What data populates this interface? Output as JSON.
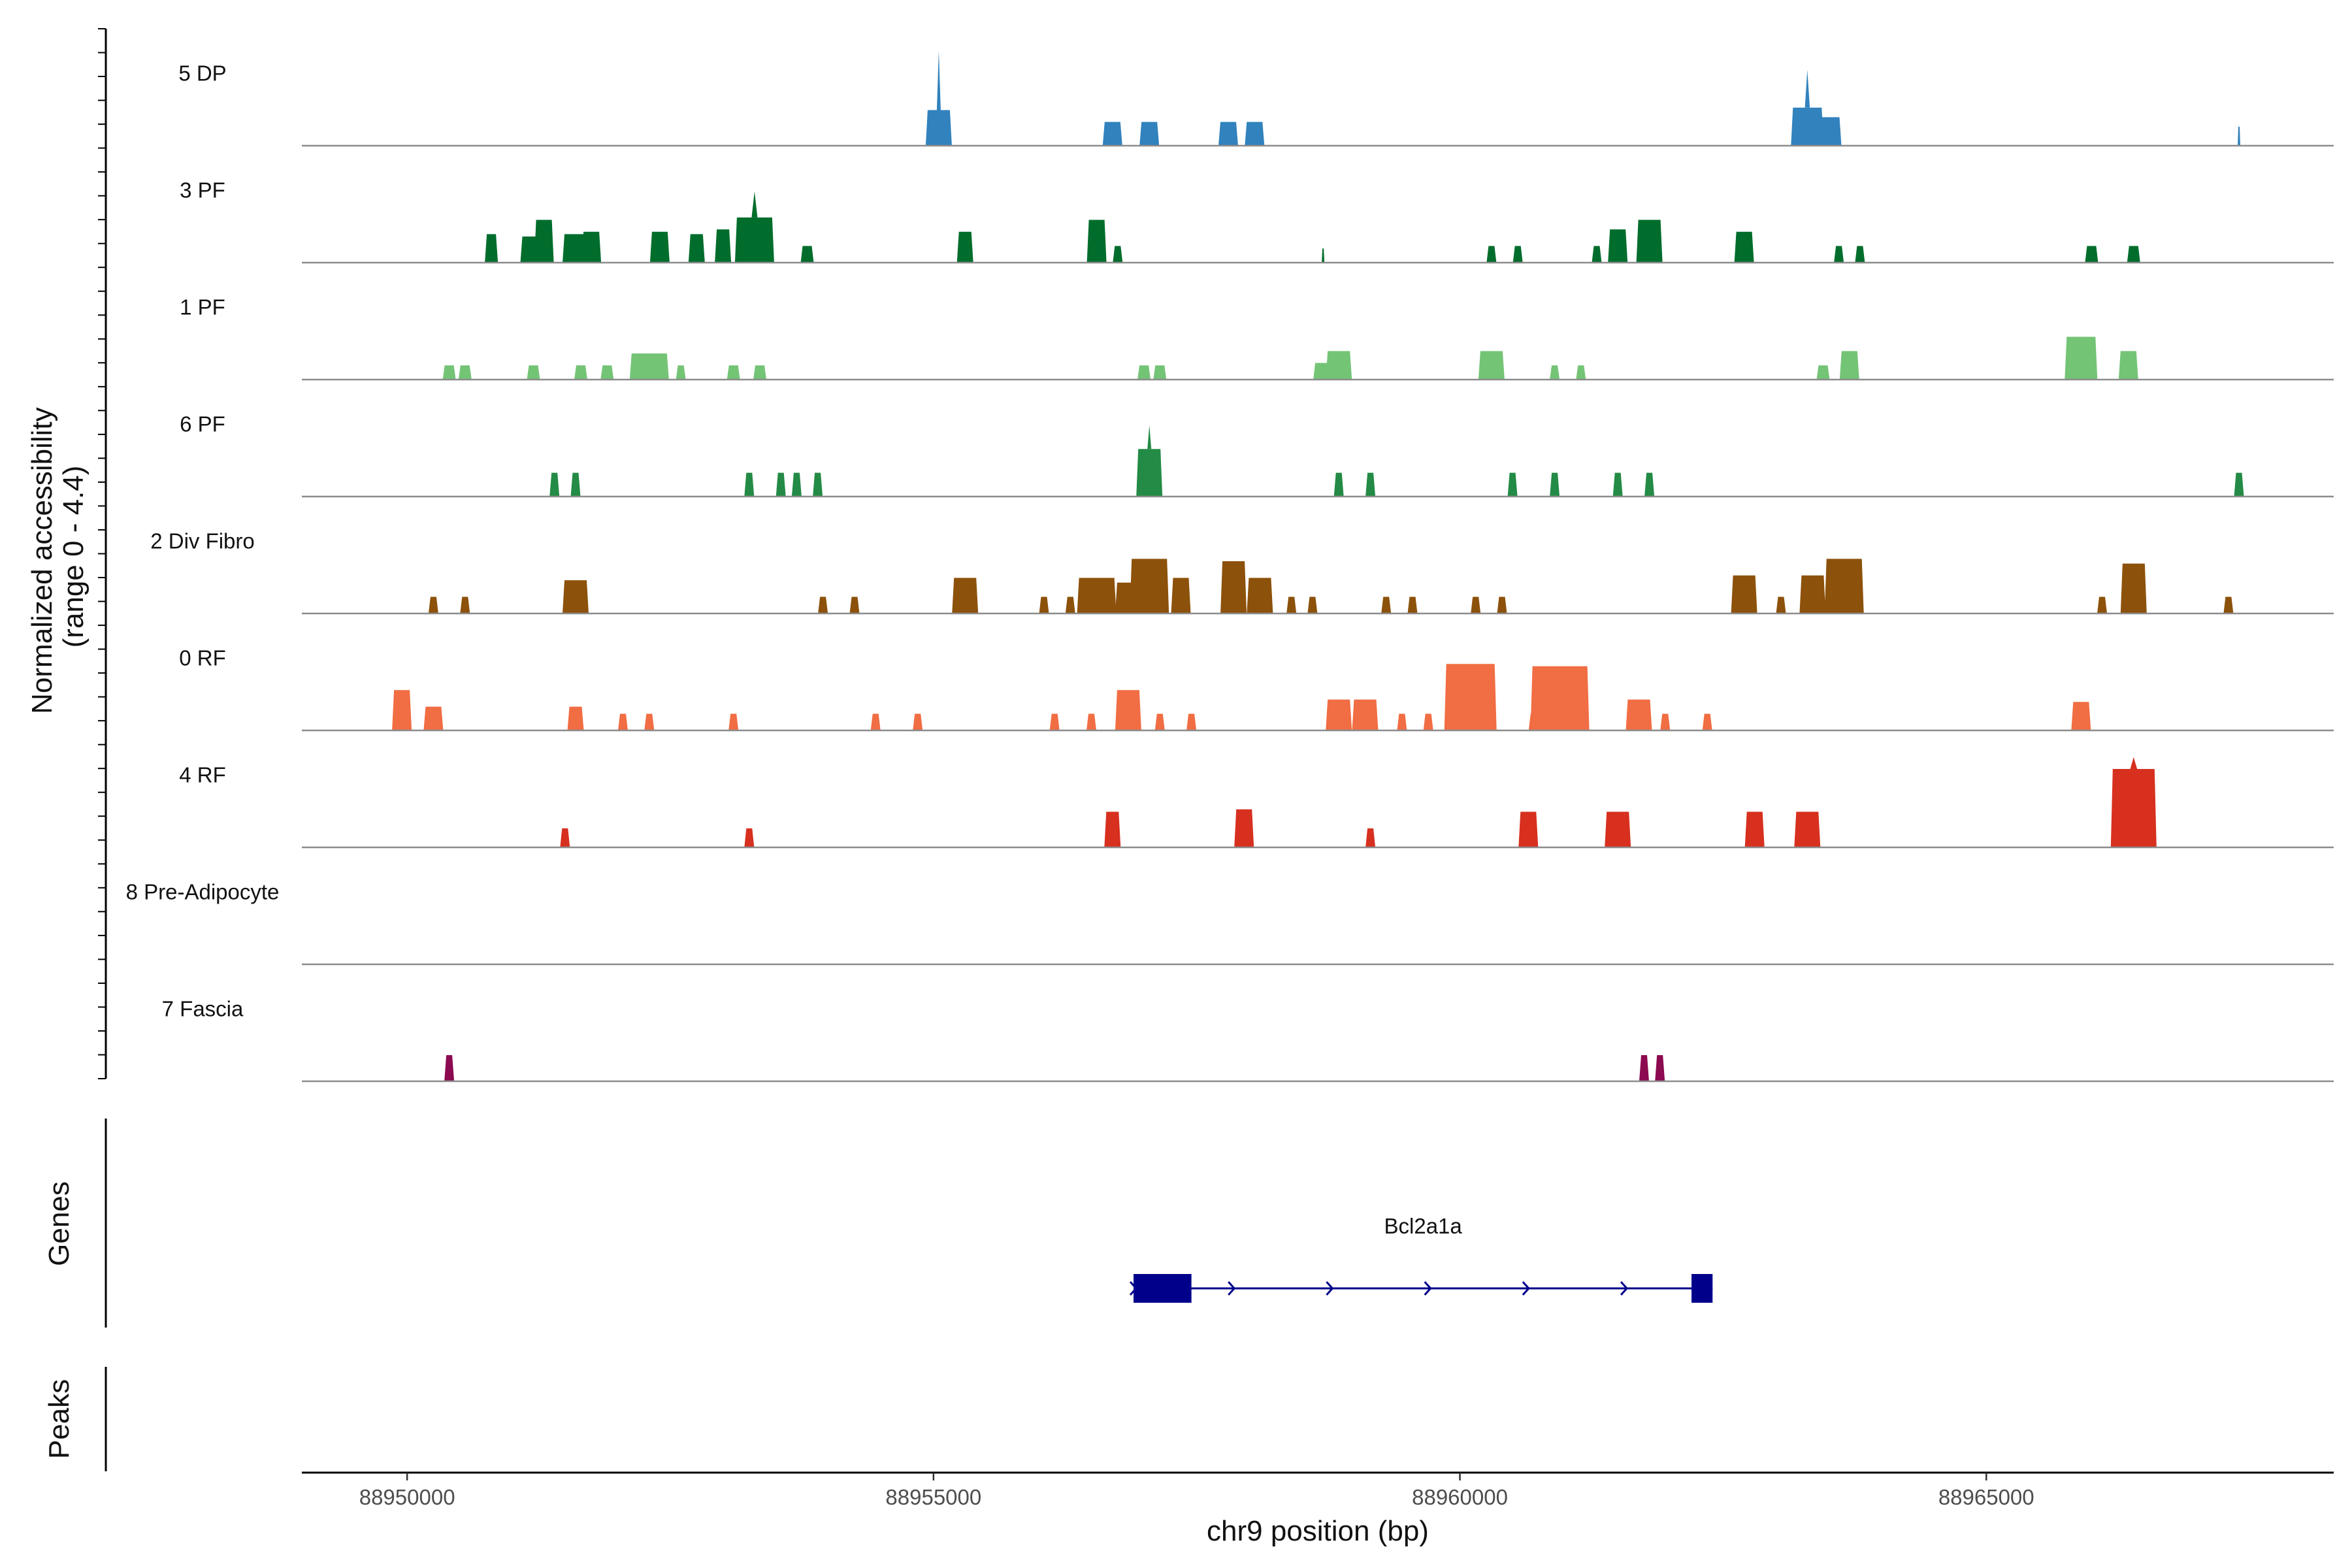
{
  "chart_data": {
    "type": "area",
    "title": "",
    "ylabel": "Normalized accessibility (range 0 - 4.4)",
    "ylabel_lines": [
      "Normalized accessibility",
      "(range 0 - 4.4)"
    ],
    "xlabel": "chr9 position (bp)",
    "xlim": [
      88949000,
      88968300
    ],
    "ylim": [
      0,
      4.4
    ],
    "x_ticks": [
      88950000,
      88955000,
      88960000,
      88965000
    ],
    "x_tick_labels": [
      "88950000",
      "88955000",
      "88960000",
      "88965000"
    ],
    "panel_labels": {
      "genes": "Genes",
      "peaks": "Peaks"
    },
    "tracks": [
      {
        "name": "5 DP",
        "color": "#3182BD",
        "peaks": [
          [
            88955050,
            40,
            1.5,
            4.0
          ],
          [
            88956700,
            30,
            1.0,
            0
          ],
          [
            88957050,
            30,
            1.0,
            0
          ],
          [
            88957800,
            30,
            1.0,
            0
          ],
          [
            88958050,
            30,
            1.0,
            0
          ],
          [
            88963300,
            50,
            1.6,
            3.2
          ],
          [
            88963500,
            40,
            1.2,
            0
          ],
          [
            88967400,
            4,
            0.8,
            0
          ]
        ]
      },
      {
        "name": "3 PF",
        "color": "#006D2C",
        "peaks": [
          [
            88950800,
            20,
            1.2,
            0
          ],
          [
            88951200,
            40,
            1.1,
            0
          ],
          [
            88951300,
            30,
            1.8,
            0
          ],
          [
            88951600,
            40,
            1.2,
            0
          ],
          [
            88951750,
            30,
            1.3,
            0
          ],
          [
            88952400,
            30,
            1.3,
            0
          ],
          [
            88952750,
            25,
            1.2,
            0
          ],
          [
            88953000,
            25,
            1.4,
            0
          ],
          [
            88953300,
            60,
            1.9,
            3.0
          ],
          [
            88953800,
            20,
            0.7,
            0
          ],
          [
            88955300,
            25,
            1.3,
            0
          ],
          [
            88956550,
            30,
            1.8,
            0
          ],
          [
            88956750,
            15,
            0.7,
            0
          ],
          [
            88958700,
            0,
            0.6,
            0
          ],
          [
            88960300,
            15,
            0.7,
            0
          ],
          [
            88960550,
            15,
            0.7,
            0
          ],
          [
            88961300,
            15,
            0.7,
            0
          ],
          [
            88961500,
            30,
            1.4,
            0
          ],
          [
            88961800,
            40,
            1.8,
            0
          ],
          [
            88962700,
            30,
            1.3,
            0
          ],
          [
            88963600,
            15,
            0.7,
            0
          ],
          [
            88963800,
            15,
            0.7,
            0
          ],
          [
            88966000,
            20,
            0.7,
            0
          ],
          [
            88966400,
            20,
            0.7,
            0
          ]
        ]
      },
      {
        "name": "1 PF",
        "color": "#74C476",
        "peaks": [
          [
            88950400,
            20,
            0.6,
            0
          ],
          [
            88950550,
            20,
            0.6,
            0
          ],
          [
            88951200,
            20,
            0.6,
            0
          ],
          [
            88951650,
            20,
            0.6,
            0
          ],
          [
            88951900,
            20,
            0.6,
            0
          ],
          [
            88952300,
            60,
            1.1,
            0
          ],
          [
            88952600,
            15,
            0.6,
            0
          ],
          [
            88953100,
            20,
            0.6,
            0
          ],
          [
            88953350,
            20,
            0.6,
            0
          ],
          [
            88957000,
            20,
            0.6,
            0
          ],
          [
            88957150,
            20,
            0.6,
            0
          ],
          [
            88958700,
            30,
            0.7,
            0
          ],
          [
            88958850,
            40,
            1.2,
            0
          ],
          [
            88960300,
            40,
            1.2,
            0
          ],
          [
            88960900,
            15,
            0.6,
            0
          ],
          [
            88961150,
            15,
            0.6,
            0
          ],
          [
            88963450,
            20,
            0.6,
            0
          ],
          [
            88963700,
            30,
            1.2,
            0
          ],
          [
            88965900,
            50,
            1.8,
            0
          ],
          [
            88966350,
            30,
            1.2,
            0
          ]
        ]
      },
      {
        "name": "6 PF",
        "color": "#238B45",
        "peaks": [
          [
            88951400,
            15,
            1.0,
            0
          ],
          [
            88951600,
            15,
            1.0,
            0
          ],
          [
            88953250,
            15,
            1.0,
            0
          ],
          [
            88953550,
            15,
            1.0,
            0
          ],
          [
            88953700,
            15,
            1.0,
            0
          ],
          [
            88953900,
            15,
            1.0,
            0
          ],
          [
            88957050,
            40,
            2.0,
            3.0
          ],
          [
            88958850,
            15,
            1.0,
            0
          ],
          [
            88959150,
            15,
            1.0,
            0
          ],
          [
            88960500,
            15,
            1.0,
            0
          ],
          [
            88960900,
            15,
            1.0,
            0
          ],
          [
            88961500,
            15,
            1.0,
            0
          ],
          [
            88961800,
            15,
            1.0,
            0
          ],
          [
            88967400,
            15,
            1.0,
            0
          ]
        ]
      },
      {
        "name": "2 Div Fibro",
        "color": "#8C510A",
        "peaks": [
          [
            88950250,
            15,
            0.7,
            0
          ],
          [
            88950550,
            15,
            0.7,
            0
          ],
          [
            88951600,
            40,
            1.4,
            0
          ],
          [
            88953950,
            15,
            0.7,
            0
          ],
          [
            88954250,
            15,
            0.7,
            0
          ],
          [
            88955300,
            40,
            1.5,
            0
          ],
          [
            88956050,
            15,
            0.7,
            0
          ],
          [
            88956300,
            15,
            0.7,
            0
          ],
          [
            88956550,
            60,
            1.5,
            0
          ],
          [
            88956850,
            40,
            1.3,
            0
          ],
          [
            88957050,
            60,
            2.3,
            0
          ],
          [
            88957350,
            30,
            1.5,
            0
          ],
          [
            88957850,
            40,
            2.2,
            0
          ],
          [
            88958100,
            40,
            1.5,
            0
          ],
          [
            88958400,
            15,
            0.7,
            0
          ],
          [
            88958600,
            15,
            0.7,
            0
          ],
          [
            88959300,
            15,
            0.7,
            0
          ],
          [
            88959550,
            15,
            0.7,
            0
          ],
          [
            88960150,
            15,
            0.7,
            0
          ],
          [
            88960400,
            15,
            0.7,
            0
          ],
          [
            88962700,
            40,
            1.6,
            0
          ],
          [
            88963050,
            15,
            0.7,
            0
          ],
          [
            88963350,
            40,
            1.6,
            0
          ],
          [
            88963650,
            60,
            2.3,
            0
          ],
          [
            88966100,
            15,
            0.7,
            0
          ],
          [
            88966400,
            40,
            2.1,
            0
          ],
          [
            88967300,
            15,
            0.7,
            0
          ]
        ]
      },
      {
        "name": "0 RF",
        "color": "#F16D43",
        "peaks": [
          [
            88949950,
            30,
            1.7,
            0
          ],
          [
            88950250,
            30,
            1.0,
            0
          ],
          [
            88951600,
            25,
            1.0,
            0
          ],
          [
            88952050,
            15,
            0.7,
            0
          ],
          [
            88952300,
            15,
            0.7,
            0
          ],
          [
            88953100,
            15,
            0.7,
            0
          ],
          [
            88954450,
            15,
            0.7,
            0
          ],
          [
            88954850,
            15,
            0.7,
            0
          ],
          [
            88956150,
            15,
            0.7,
            0
          ],
          [
            88956500,
            15,
            0.7,
            0
          ],
          [
            88956850,
            40,
            1.7,
            0
          ],
          [
            88957150,
            15,
            0.7,
            0
          ],
          [
            88957450,
            15,
            0.7,
            0
          ],
          [
            88958850,
            40,
            1.3,
            0
          ],
          [
            88959100,
            40,
            1.3,
            0
          ],
          [
            88959450,
            15,
            0.7,
            0
          ],
          [
            88959700,
            15,
            0.7,
            0
          ],
          [
            88960100,
            80,
            2.8,
            0
          ],
          [
            88960700,
            15,
            0.7,
            0
          ],
          [
            88960950,
            90,
            2.7,
            0
          ],
          [
            88961700,
            40,
            1.3,
            0
          ],
          [
            88961950,
            15,
            0.7,
            0
          ],
          [
            88962350,
            15,
            0.7,
            0
          ],
          [
            88965900,
            30,
            1.2,
            0
          ]
        ]
      },
      {
        "name": "4 RF",
        "color": "#D7301F",
        "peaks": [
          [
            88951500,
            15,
            0.8,
            0
          ],
          [
            88953250,
            15,
            0.8,
            0
          ],
          [
            88956700,
            25,
            1.5,
            0
          ],
          [
            88957950,
            30,
            1.6,
            0
          ],
          [
            88959150,
            15,
            0.8,
            0
          ],
          [
            88960650,
            30,
            1.5,
            0
          ],
          [
            88961500,
            40,
            1.5,
            0
          ],
          [
            88962800,
            30,
            1.5,
            0
          ],
          [
            88963300,
            40,
            1.5,
            0
          ],
          [
            88966400,
            70,
            3.3,
            3.8
          ]
        ]
      },
      {
        "name": "8 Pre-Adipocyte",
        "color": "#4D4D4D",
        "peaks": []
      },
      {
        "name": "7 Fascia",
        "color": "#8B0A50",
        "peaks": [
          [
            88950400,
            15,
            1.1,
            0
          ],
          [
            88961750,
            15,
            1.1,
            0
          ],
          [
            88961900,
            15,
            1.1,
            0
          ]
        ]
      }
    ],
    "genes": [
      {
        "name": "Bcl2a1a",
        "color": "#00008B",
        "start": 88956900,
        "end": 88962400,
        "exons": [
          [
            88956900,
            88957450
          ],
          [
            88962200,
            88962400
          ]
        ],
        "strand": "+"
      }
    ]
  }
}
